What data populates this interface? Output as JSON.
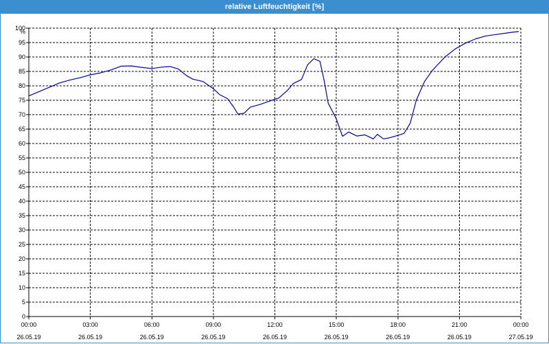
{
  "window": {
    "title": "relative Luftfeuchtigkeit [%]"
  },
  "chart_data": {
    "type": "line",
    "title": "relative Luftfeuchtigkeit [%]",
    "ylabel": "%",
    "xlabel": "",
    "ylim": [
      0,
      100
    ],
    "xlim_hours": [
      0,
      24
    ],
    "grid": true,
    "y_ticks": [
      0,
      5,
      10,
      15,
      20,
      25,
      30,
      35,
      40,
      45,
      50,
      55,
      60,
      65,
      70,
      75,
      80,
      85,
      90,
      95,
      100
    ],
    "x_ticks": [
      {
        "hour": 0,
        "time": "00:00",
        "date": "26.05.19"
      },
      {
        "hour": 3,
        "time": "03:00",
        "date": "26.05.19"
      },
      {
        "hour": 6,
        "time": "06:00",
        "date": "26.05.19"
      },
      {
        "hour": 9,
        "time": "09:00",
        "date": "26.05.19"
      },
      {
        "hour": 12,
        "time": "12:00",
        "date": "26.05.19"
      },
      {
        "hour": 15,
        "time": "15:00",
        "date": "26.05.19"
      },
      {
        "hour": 18,
        "time": "18:00",
        "date": "26.05.19"
      },
      {
        "hour": 21,
        "time": "21:00",
        "date": "26.05.19"
      },
      {
        "hour": 24,
        "time": "00:00",
        "date": "27.05.19"
      }
    ],
    "series": [
      {
        "name": "",
        "color": "#0000a0",
        "points": [
          [
            0.0,
            76.5
          ],
          [
            0.5,
            78.0
          ],
          [
            1.0,
            79.5
          ],
          [
            1.5,
            81.0
          ],
          [
            2.0,
            82.0
          ],
          [
            2.5,
            82.8
          ],
          [
            3.0,
            83.8
          ],
          [
            3.5,
            84.5
          ],
          [
            4.0,
            85.5
          ],
          [
            4.5,
            86.8
          ],
          [
            5.0,
            86.9
          ],
          [
            5.5,
            86.4
          ],
          [
            6.0,
            86.0
          ],
          [
            6.5,
            86.5
          ],
          [
            6.9,
            86.7
          ],
          [
            7.3,
            85.8
          ],
          [
            7.7,
            83.5
          ],
          [
            8.0,
            82.3
          ],
          [
            8.5,
            81.5
          ],
          [
            9.0,
            79.0
          ],
          [
            9.3,
            77.0
          ],
          [
            9.7,
            75.5
          ],
          [
            10.0,
            72.5
          ],
          [
            10.2,
            70.2
          ],
          [
            10.5,
            70.5
          ],
          [
            10.8,
            72.6
          ],
          [
            11.3,
            73.6
          ],
          [
            11.7,
            74.6
          ],
          [
            12.2,
            75.8
          ],
          [
            12.6,
            78.3
          ],
          [
            12.9,
            80.8
          ],
          [
            13.3,
            82.2
          ],
          [
            13.6,
            87.3
          ],
          [
            13.9,
            89.4
          ],
          [
            14.2,
            88.5
          ],
          [
            14.4,
            82.0
          ],
          [
            14.6,
            74.0
          ],
          [
            15.0,
            68.5
          ],
          [
            15.3,
            62.5
          ],
          [
            15.6,
            64.0
          ],
          [
            16.0,
            62.6
          ],
          [
            16.4,
            63.0
          ],
          [
            16.8,
            61.6
          ],
          [
            17.0,
            63.2
          ],
          [
            17.3,
            61.6
          ],
          [
            17.6,
            62.0
          ],
          [
            18.0,
            62.8
          ],
          [
            18.3,
            63.5
          ],
          [
            18.6,
            67.0
          ],
          [
            18.9,
            75.0
          ],
          [
            19.3,
            81.5
          ],
          [
            19.7,
            85.5
          ],
          [
            20.3,
            90.0
          ],
          [
            20.8,
            92.8
          ],
          [
            21.3,
            94.8
          ],
          [
            21.8,
            96.3
          ],
          [
            22.3,
            97.3
          ],
          [
            22.8,
            97.8
          ],
          [
            23.3,
            98.3
          ],
          [
            23.6,
            98.6
          ],
          [
            23.9,
            98.8
          ]
        ]
      }
    ]
  }
}
